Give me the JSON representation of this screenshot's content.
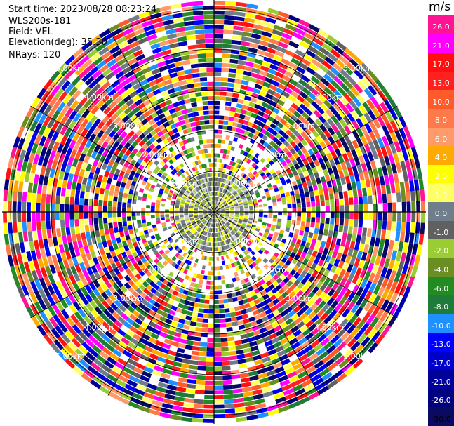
{
  "header": {
    "start_time": "Start time: 2023/08/28 08:23:24",
    "instrument": "WLS200s-181",
    "field": "Field: VEL",
    "elevation": "Elevation(deg): 35.30",
    "nrays": "NRays: 120"
  },
  "ring_labels": [
    "1.00km",
    "2.00km",
    "3.00km",
    "4.00km",
    "5.00km"
  ],
  "colorbar": {
    "unit": "m/s",
    "ticks": [
      "26.0",
      "21.0",
      "17.0",
      "13.0",
      "10.0",
      "8.0",
      "6.0",
      "4.0",
      "2.0",
      "1.0",
      "0.0",
      "-1.0",
      "-2.0",
      "-4.0",
      "-6.0",
      "-8.0",
      "-10.0",
      "-13.0",
      "-17.0",
      "-21.0",
      "-26.0",
      "-30.0"
    ],
    "colors": [
      "#ff1493",
      "#ff00ff",
      "#ff1010",
      "#ff2020",
      "#ff5a2a",
      "#ff7a4a",
      "#ff9a6a",
      "#ffaa00",
      "#ffff00",
      "#ffff66",
      "#707e8c",
      "#606060",
      "#9acd32",
      "#6b8e23",
      "#228b22",
      "#1e7b3a",
      "#1e90ff",
      "#0000ff",
      "#0000cc",
      "#00009a",
      "#000080",
      "#0a0a60"
    ]
  }
}
